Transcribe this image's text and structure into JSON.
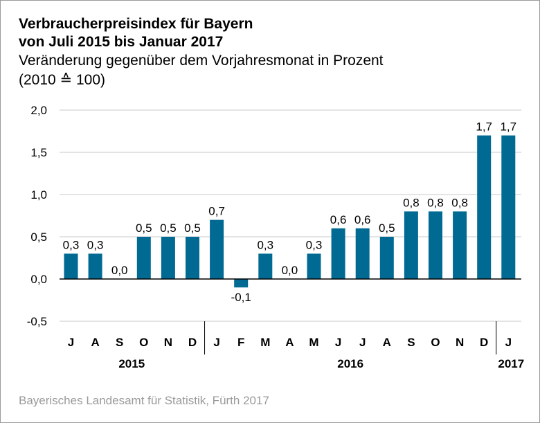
{
  "title_line1": "Verbraucherpreisindex für Bayern",
  "title_line2": "von Juli 2015 bis Januar 2017",
  "subtitle": "Veränderung gegenüber dem Vorjahresmonat in Prozent",
  "base_note": "(2010 ≙ 100)",
  "source": "Bayerisches Landesamt für Statistik, Fürth 2017",
  "colors": {
    "bar": "#006a93",
    "grid": "#c8c8c8",
    "axis": "#000000",
    "source_text": "#9a9a9a"
  },
  "chart_data": {
    "type": "bar",
    "title": "Verbraucherpreisindex für Bayern von Juli 2015 bis Januar 2017",
    "ylabel": "Veränderung gegenüber dem Vorjahresmonat in Prozent",
    "xlabel": "",
    "ylim": [
      -0.5,
      2.0
    ],
    "yticks": [
      -0.5,
      0.0,
      0.5,
      1.0,
      1.5,
      2.0
    ],
    "ytick_labels": [
      "-0,5",
      "0,0",
      "0,5",
      "1,0",
      "1,5",
      "2,0"
    ],
    "grid": true,
    "categories": [
      "J",
      "A",
      "S",
      "O",
      "N",
      "D",
      "J",
      "F",
      "M",
      "A",
      "M",
      "J",
      "J",
      "A",
      "S",
      "O",
      "N",
      "D",
      "J"
    ],
    "values": [
      0.3,
      0.3,
      0.0,
      0.5,
      0.5,
      0.5,
      0.7,
      -0.1,
      0.3,
      0.0,
      0.3,
      0.6,
      0.6,
      0.5,
      0.8,
      0.8,
      0.8,
      1.7,
      1.7
    ],
    "value_labels": [
      "0,3",
      "0,3",
      "0,0",
      "0,5",
      "0,5",
      "0,5",
      "0,7",
      "-0,1",
      "0,3",
      "0,0",
      "0,3",
      "0,6",
      "0,6",
      "0,5",
      "0,8",
      "0,8",
      "0,8",
      "1,7",
      "1,7"
    ],
    "year_groups": [
      {
        "label": "2015",
        "count": 6
      },
      {
        "label": "2016",
        "count": 12
      },
      {
        "label": "2017",
        "count": 1
      }
    ]
  }
}
